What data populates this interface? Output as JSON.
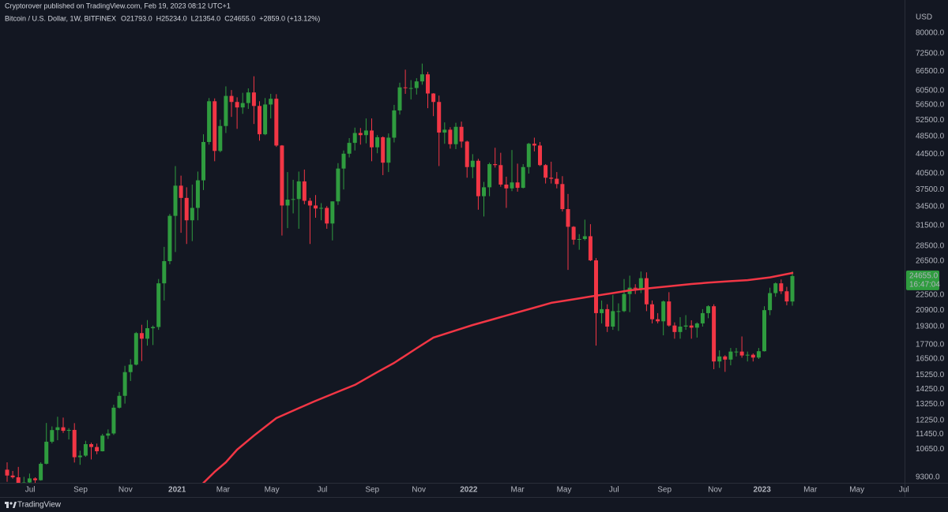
{
  "chart_data": {
    "type": "candlestick",
    "published": "Cryptorover published on TradingView.com, Feb 19, 2023 08:12 UTC+1",
    "title": "Bitcoin / U.S. Dollar, 1W, BITFINEX",
    "ohlc_labels": [
      "O21793.0",
      "H25234.0",
      "L21354.0",
      "C24655.0",
      "+2859.0 (+13.12%)"
    ],
    "currency": "USD",
    "last_price_label": "24655.0",
    "countdown": "16:47:04",
    "brand": "TradingView",
    "up_color": "#2f9c3f",
    "down_color": "#f23645",
    "log_scale": true,
    "grid": false,
    "open": [
      9650,
      9380,
      9300,
      9000,
      9070,
      9250,
      9170,
      9930,
      11050,
      11690,
      11850,
      11650,
      11700,
      10250,
      10330,
      10920,
      10770,
      10550,
      11380,
      11500,
      13030,
      13800,
      15480,
      16050,
      18700,
      18200,
      19150,
      19260,
      23800,
      26500,
      33000,
      38200,
      36000,
      32300,
      34300,
      39200,
      47200,
      57500,
      45200,
      51000,
      59000,
      57300,
      55800,
      57000,
      60000,
      56200,
      49000,
      56600,
      58200,
      46400,
      34700,
      35700,
      35800,
      39000,
      35500,
      34700,
      34200,
      34300,
      31800,
      35400,
      41500,
      44600,
      47000,
      49300,
      48800,
      49900,
      46000,
      48300,
      42700,
      48200,
      55000,
      61500,
      61300,
      61300,
      63300,
      65500,
      59700,
      57300,
      49400,
      50100,
      46700,
      50800,
      47300,
      41800,
      43100,
      36300,
      37900,
      42400,
      42200,
      38400,
      37700,
      38800,
      37800,
      41800,
      46800,
      46400,
      42200,
      39700,
      39500,
      38500,
      34100,
      31300,
      29400,
      29500,
      29900,
      26600,
      20600,
      21000,
      19300,
      20800,
      20800,
      22600,
      23300,
      23200,
      24400,
      21500,
      20000,
      19800,
      21800,
      19400,
      18800,
      19300,
      19400,
      19200,
      19600,
      20600,
      21300,
      16300,
      16700,
      16450,
      17100,
      17100,
      16780,
      16840,
      16610,
      17130,
      20900,
      22700,
      23800,
      22900,
      21793
    ],
    "high": [
      10000,
      9590,
      9780,
      9320,
      9470,
      9300,
      10000,
      12100,
      11900,
      12470,
      12420,
      11800,
      12090,
      10580,
      11100,
      11000,
      10950,
      11480,
      11730,
      13220,
      14060,
      15960,
      16480,
      18800,
      19470,
      19920,
      19400,
      24300,
      28400,
      33300,
      42000,
      40100,
      37900,
      38400,
      40900,
      49000,
      58400,
      58300,
      52600,
      61800,
      60700,
      58600,
      59900,
      61200,
      64900,
      57500,
      58400,
      59600,
      59500,
      46500,
      40800,
      39300,
      40900,
      41300,
      36000,
      36500,
      35100,
      34600,
      35400,
      42600,
      45300,
      48100,
      50600,
      50500,
      52900,
      52900,
      48800,
      48500,
      49200,
      56500,
      62900,
      67000,
      63700,
      64300,
      69000,
      66300,
      59800,
      59100,
      51900,
      50700,
      51800,
      52100,
      47500,
      44500,
      43500,
      38900,
      42700,
      45900,
      44800,
      39900,
      45400,
      42500,
      42400,
      47000,
      48200,
      47200,
      42400,
      42900,
      40800,
      40000,
      36700,
      31400,
      30200,
      32400,
      31700,
      26900,
      21900,
      21500,
      22500,
      21600,
      24300,
      24700,
      23700,
      25200,
      25100,
      21900,
      20600,
      21900,
      22800,
      19700,
      20200,
      20400,
      19900,
      19700,
      21000,
      21400,
      21500,
      17200,
      16800,
      17400,
      17400,
      18400,
      17100,
      16950,
      17400,
      21300,
      23300,
      23900,
      24250,
      23400,
      25234
    ],
    "low": [
      9100,
      9240,
      8900,
      8950,
      9050,
      9040,
      9150,
      9900,
      10960,
      11130,
      11530,
      11170,
      9990,
      9880,
      10270,
      10140,
      10400,
      10540,
      11200,
      11420,
      12980,
      13290,
      14830,
      15990,
      16330,
      17600,
      17650,
      19000,
      21900,
      26100,
      27700,
      30400,
      28800,
      29200,
      32300,
      37400,
      46600,
      43000,
      44900,
      49300,
      53300,
      50300,
      54100,
      55400,
      51500,
      47500,
      48800,
      52900,
      46100,
      30000,
      31100,
      33400,
      31000,
      34900,
      28800,
      32700,
      32300,
      31000,
      29300,
      34800,
      37500,
      43800,
      45300,
      46600,
      46900,
      43000,
      44700,
      40200,
      40800,
      47100,
      53900,
      59600,
      58000,
      59400,
      62300,
      55600,
      53500,
      42000,
      46800,
      45700,
      45600,
      45900,
      39700,
      39600,
      34000,
      32900,
      36300,
      41700,
      38000,
      34300,
      37200,
      37100,
      37700,
      40500,
      45100,
      42000,
      38600,
      38600,
      37700,
      33700,
      25400,
      28700,
      28000,
      29300,
      26500,
      17600,
      19600,
      18800,
      19000,
      18900,
      20700,
      20700,
      22600,
      22700,
      20800,
      19600,
      19600,
      18500,
      19300,
      18200,
      18200,
      19000,
      18200,
      18300,
      19300,
      20100,
      15700,
      15800,
      15500,
      16000,
      16700,
      16600,
      16300,
      16300,
      16500,
      17100,
      20400,
      22300,
      22600,
      21400,
      21354
    ],
    "close": [
      9380,
      9300,
      9000,
      9070,
      9250,
      9170,
      9930,
      11050,
      11690,
      11850,
      11650,
      11700,
      10250,
      10330,
      10920,
      10770,
      10550,
      11380,
      11500,
      13030,
      13800,
      15480,
      16050,
      18700,
      18200,
      19150,
      19260,
      23800,
      26500,
      33000,
      38200,
      36000,
      32300,
      34300,
      39200,
      47200,
      57500,
      45200,
      51000,
      59000,
      57300,
      55800,
      57000,
      60000,
      56200,
      49000,
      56600,
      58200,
      46400,
      34700,
      35700,
      35800,
      39000,
      35500,
      34700,
      34200,
      34300,
      31800,
      35400,
      41500,
      44600,
      47000,
      49300,
      48800,
      49900,
      46000,
      48300,
      42700,
      48200,
      55000,
      61500,
      61300,
      61300,
      63300,
      65500,
      59700,
      57300,
      49400,
      50100,
      46700,
      50800,
      47300,
      41800,
      43100,
      36300,
      37900,
      42400,
      42200,
      38400,
      37700,
      38800,
      37800,
      41800,
      46800,
      46400,
      42200,
      39700,
      39500,
      38500,
      34100,
      31300,
      29400,
      29500,
      29900,
      26600,
      20600,
      21000,
      19300,
      20800,
      20800,
      22600,
      23300,
      23200,
      24400,
      21500,
      20000,
      19800,
      21800,
      19400,
      18800,
      19300,
      19400,
      19200,
      19600,
      20600,
      21300,
      16300,
      16700,
      16450,
      17100,
      17100,
      16780,
      16840,
      16610,
      17130,
      20900,
      22700,
      23800,
      22900,
      21800,
      24655
    ],
    "series": [
      {
        "color": "#f23645",
        "x": [
          35,
          37,
          39,
          41,
          44,
          48,
          52,
          55,
          59,
          62,
          66,
          69,
          73,
          76,
          80,
          83,
          87,
          90,
          94,
          97,
          101,
          104,
          108,
          111,
          115,
          118,
          122,
          125,
          129,
          132,
          136,
          140
        ],
        "values": [
          9050,
          9550,
          10000,
          10630,
          11380,
          12390,
          13000,
          13470,
          14080,
          14550,
          15480,
          16190,
          17370,
          18300,
          18950,
          19450,
          20050,
          20520,
          21150,
          21650,
          22030,
          22320,
          22700,
          23010,
          23270,
          23460,
          23720,
          23880,
          24050,
          24170,
          24500,
          25030
        ]
      }
    ],
    "xlim": [
      -1.27,
      160.0
    ],
    "xticks": [
      {
        "value": 4.1,
        "label": "Jul"
      },
      {
        "value": 13.1,
        "label": "Sep"
      },
      {
        "value": 21.1,
        "label": "Nov"
      },
      {
        "value": 30.3,
        "label": "2021"
      },
      {
        "value": 38.5,
        "label": "Mar"
      },
      {
        "value": 47.2,
        "label": "May"
      },
      {
        "value": 56.2,
        "label": "Jul"
      },
      {
        "value": 65.1,
        "label": "Sep"
      },
      {
        "value": 73.4,
        "label": "Nov"
      },
      {
        "value": 82.3,
        "label": "2022"
      },
      {
        "value": 91.0,
        "label": "Mar"
      },
      {
        "value": 99.3,
        "label": "May"
      },
      {
        "value": 108.2,
        "label": "Jul"
      },
      {
        "value": 117.2,
        "label": "Sep"
      },
      {
        "value": 126.2,
        "label": "Nov"
      },
      {
        "value": 134.6,
        "label": "2023"
      },
      {
        "value": 143.2,
        "label": "Mar"
      },
      {
        "value": 151.5,
        "label": "May"
      },
      {
        "value": 159.9,
        "label": "Jul"
      }
    ],
    "ylim": [
      9055,
      93900
    ],
    "yticks": [
      {
        "value": 80000,
        "label": "80000.0"
      },
      {
        "value": 72500,
        "label": "72500.0"
      },
      {
        "value": 66500,
        "label": "66500.0"
      },
      {
        "value": 60500,
        "label": "60500.0"
      },
      {
        "value": 56500,
        "label": "56500.0"
      },
      {
        "value": 52500,
        "label": "52500.0"
      },
      {
        "value": 48500,
        "label": "48500.0"
      },
      {
        "value": 44500,
        "label": "44500.0"
      },
      {
        "value": 40500,
        "label": "40500.0"
      },
      {
        "value": 37500,
        "label": "37500.0"
      },
      {
        "value": 34500,
        "label": "34500.0"
      },
      {
        "value": 31500,
        "label": "31500.0"
      },
      {
        "value": 28500,
        "label": "28500.0"
      },
      {
        "value": 26500,
        "label": "26500.0"
      },
      {
        "value": 22500,
        "label": "22500.0"
      },
      {
        "value": 20900,
        "label": "20900.0"
      },
      {
        "value": 19300,
        "label": "19300.0"
      },
      {
        "value": 17700,
        "label": "17700.0"
      },
      {
        "value": 16500,
        "label": "16500.0"
      },
      {
        "value": 15250,
        "label": "15250.0"
      },
      {
        "value": 14250,
        "label": "14250.0"
      },
      {
        "value": 13250,
        "label": "13250.0"
      },
      {
        "value": 12250,
        "label": "12250.0"
      },
      {
        "value": 11450,
        "label": "11450.0"
      },
      {
        "value": 10650,
        "label": "10650.0"
      },
      {
        "value": 9300,
        "label": "9300.0"
      }
    ]
  }
}
